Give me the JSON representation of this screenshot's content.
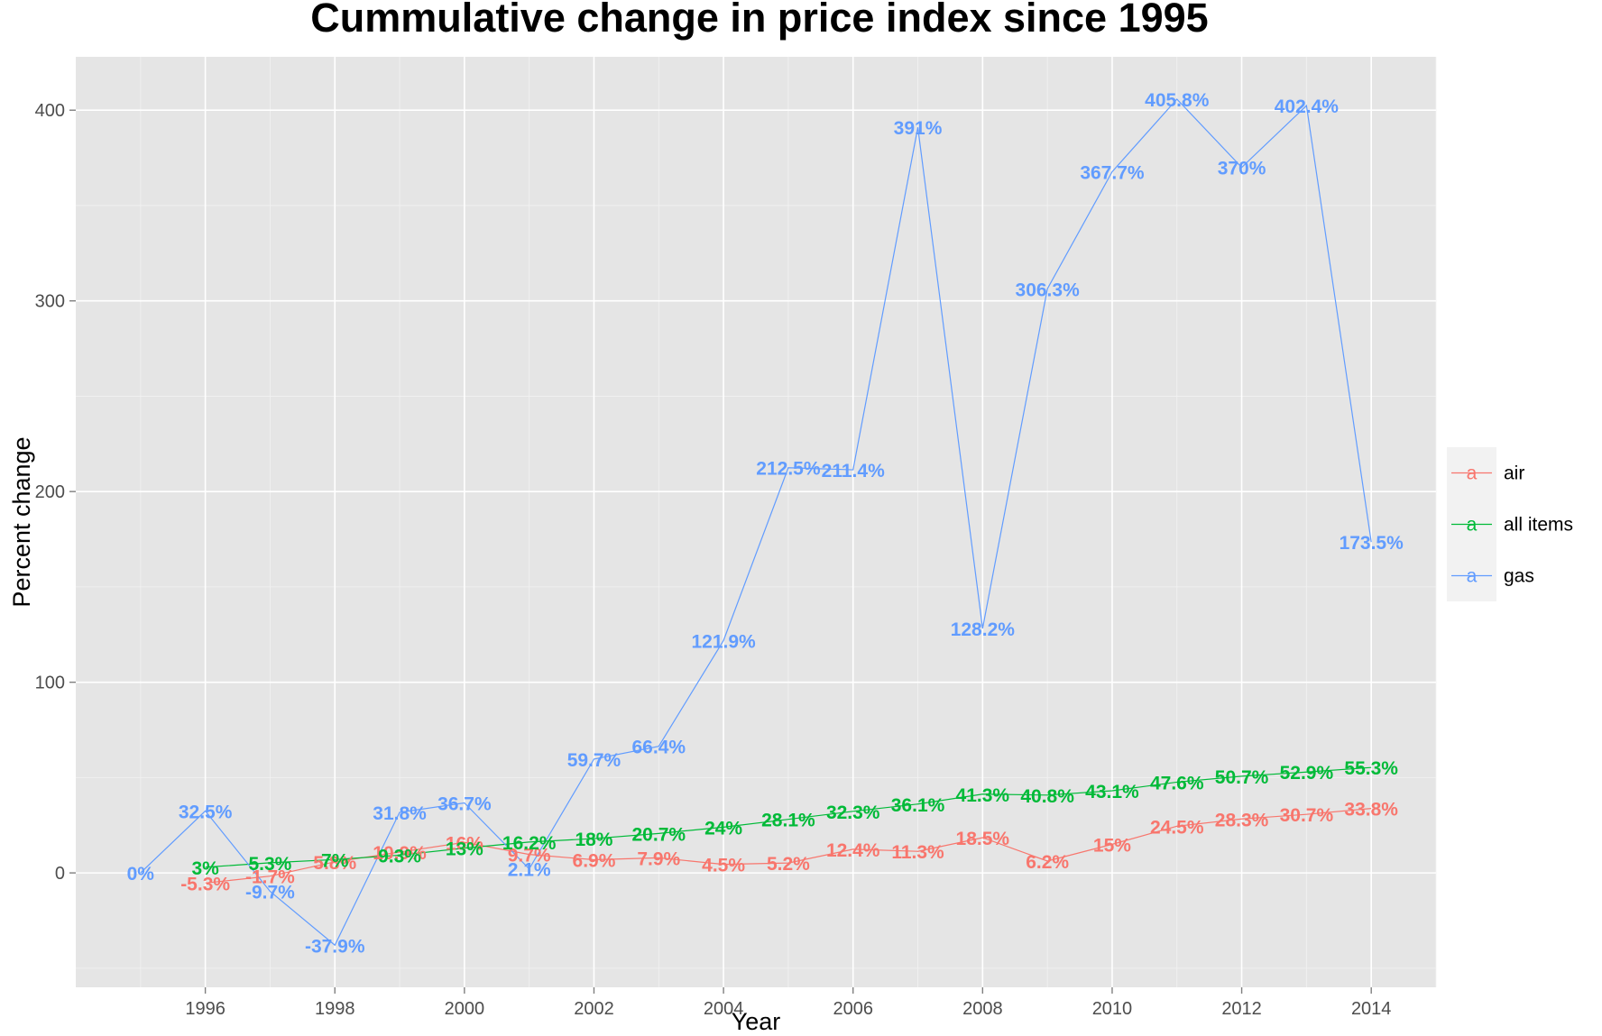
{
  "chart_data": {
    "type": "line",
    "title": "Cummulative change in price index since 1995",
    "xlabel": "Year",
    "ylabel": "Percent change",
    "xlim": [
      1994.0,
      2015.0
    ],
    "ylim": [
      -60,
      428
    ],
    "x_ticks": [
      1996,
      1998,
      2000,
      2002,
      2004,
      2006,
      2008,
      2010,
      2012,
      2014
    ],
    "y_ticks": [
      0,
      100,
      200,
      300,
      400
    ],
    "grid": true,
    "legend_position": "right",
    "background_color": "#e5e5e5",
    "series": [
      {
        "name": "air",
        "color": "#f8766d",
        "x": [
          1996,
          1997,
          1998,
          1999,
          2000,
          2001,
          2002,
          2003,
          2004,
          2005,
          2006,
          2007,
          2008,
          2009,
          2010,
          2011,
          2012,
          2013,
          2014
        ],
        "values": [
          -5.3,
          -1.7,
          5.8,
          10.9,
          16,
          9.7,
          6.9,
          7.9,
          4.5,
          5.2,
          12.4,
          11.3,
          18.5,
          6.2,
          15,
          24.5,
          28.3,
          30.7,
          33.8
        ],
        "labels": [
          "-5.3%",
          "-1.7%",
          "5.8%",
          "10.9%",
          "16%",
          "9.7%",
          "6.9%",
          "7.9%",
          "4.5%",
          "5.2%",
          "12.4%",
          "11.3%",
          "18.5%",
          "6.2%",
          "15%",
          "24.5%",
          "28.3%",
          "30.7%",
          "33.8%"
        ]
      },
      {
        "name": "all items",
        "color": "#00ba38",
        "x": [
          1996,
          1997,
          1998,
          1999,
          2000,
          2001,
          2002,
          2003,
          2004,
          2005,
          2006,
          2007,
          2008,
          2009,
          2010,
          2011,
          2012,
          2013,
          2014
        ],
        "values": [
          3,
          5.3,
          7,
          9.3,
          13,
          16.2,
          18,
          20.7,
          24,
          28.1,
          32.3,
          36.1,
          41.3,
          40.8,
          43.1,
          47.6,
          50.7,
          52.9,
          55.3
        ],
        "labels": [
          "3%",
          "5.3%",
          "7%",
          "9.3%",
          "13%",
          "16.2%",
          "18%",
          "20.7%",
          "24%",
          "28.1%",
          "32.3%",
          "36.1%",
          "41.3%",
          "40.8%",
          "43.1%",
          "47.6%",
          "50.7%",
          "52.9%",
          "55.3%"
        ]
      },
      {
        "name": "gas",
        "color": "#619cff",
        "x": [
          1995,
          1996,
          1997,
          1998,
          1999,
          2000,
          2001,
          2002,
          2003,
          2004,
          2005,
          2006,
          2007,
          2008,
          2009,
          2010,
          2011,
          2012,
          2013,
          2014
        ],
        "values": [
          0,
          32.5,
          -9.7,
          -37.9,
          31.8,
          36.7,
          2.1,
          59.7,
          66.4,
          121.9,
          212.5,
          211.4,
          391,
          128.2,
          306.3,
          367.7,
          405.8,
          370,
          402.4,
          173.5
        ],
        "labels": [
          "0%",
          "32.5%",
          "-9.7%",
          "-37.9%",
          "31.8%",
          "36.7%",
          "2.1%",
          "59.7%",
          "66.4%",
          "121.9%",
          "212.5%",
          "211.4%",
          "391%",
          "128.2%",
          "306.3%",
          "367.7%",
          "405.8%",
          "370%",
          "402.4%",
          "173.5%"
        ]
      }
    ]
  },
  "legend": {
    "items": [
      {
        "label": "air",
        "key": "a",
        "color": "#f8766d"
      },
      {
        "label": "all items",
        "key": "a",
        "color": "#00ba38"
      },
      {
        "label": "gas",
        "key": "a",
        "color": "#619cff"
      }
    ]
  }
}
